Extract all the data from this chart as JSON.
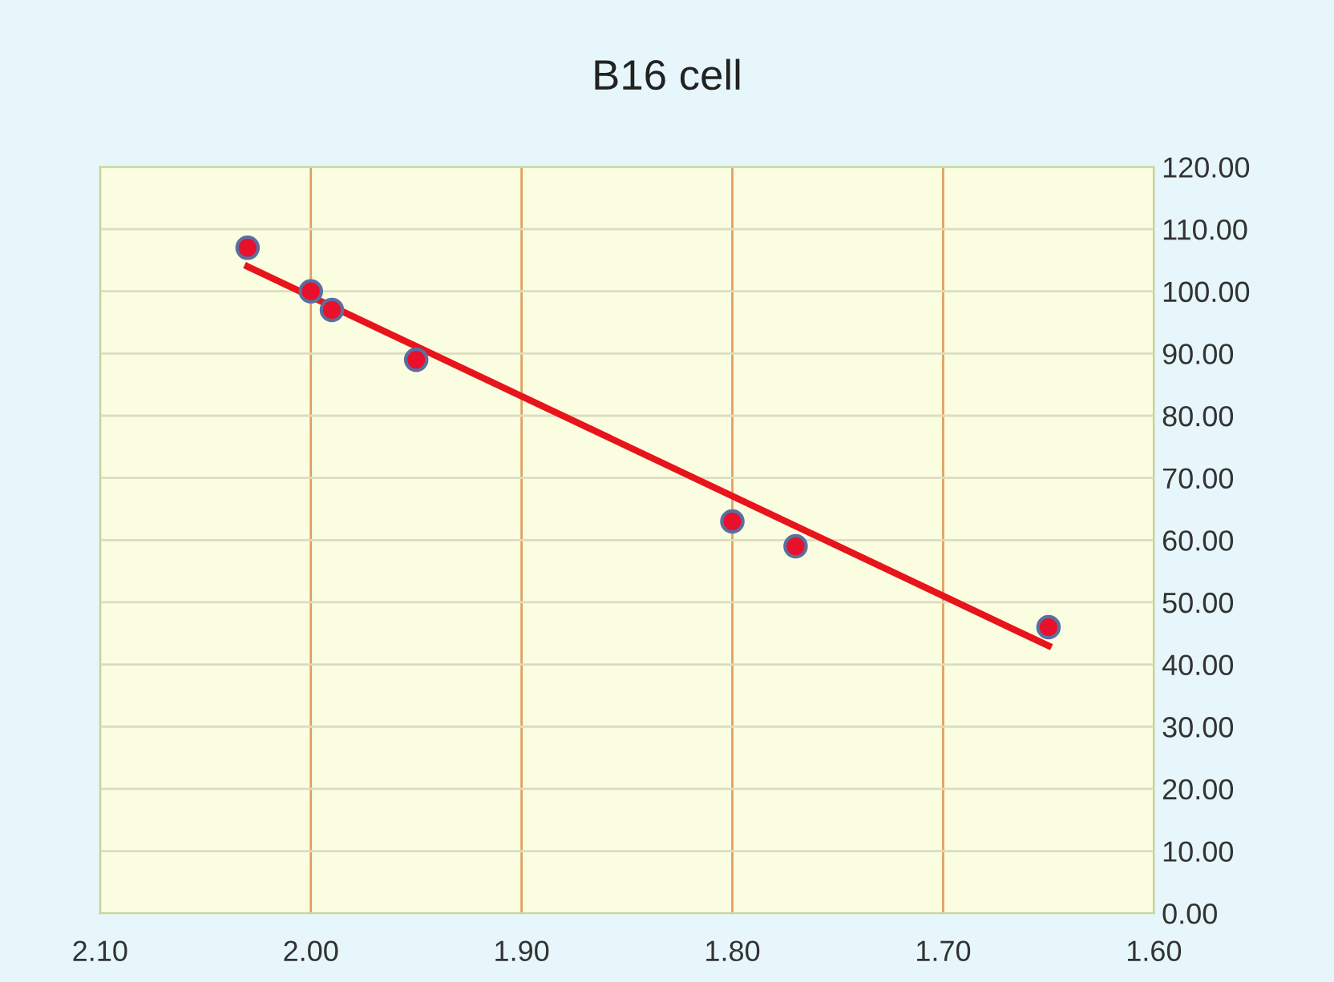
{
  "chart_data": {
    "type": "scatter",
    "title": "B16 cell",
    "series": [
      {
        "marker": "circle",
        "color": "#e8102a",
        "x": [
          2.03,
          2.0,
          1.99,
          1.95,
          1.8,
          1.77,
          1.65
        ],
        "values": [
          107,
          100,
          97,
          89,
          63,
          59,
          46
        ]
      },
      {
        "type": "line",
        "color": "#e8141c",
        "x": [
          2.03,
          1.65
        ],
        "values": [
          104,
          43
        ]
      }
    ],
    "xlim": [
      2.1,
      1.6
    ],
    "xticks": [
      {
        "value": 2.1,
        "label": "2.10"
      },
      {
        "value": 2.0,
        "label": "2.00"
      },
      {
        "value": 1.9,
        "label": "1.90"
      },
      {
        "value": 1.8,
        "label": "1.80"
      },
      {
        "value": 1.7,
        "label": "1.70"
      },
      {
        "value": 1.6,
        "label": "1.60"
      }
    ],
    "ylim": [
      0,
      120
    ],
    "yticks": [
      {
        "value": 0,
        "label": "0.00"
      },
      {
        "value": 10,
        "label": "10.00"
      },
      {
        "value": 20,
        "label": "20.00"
      },
      {
        "value": 30,
        "label": "30.00"
      },
      {
        "value": 40,
        "label": "40.00"
      },
      {
        "value": 50,
        "label": "50.00"
      },
      {
        "value": 60,
        "label": "60.00"
      },
      {
        "value": 70,
        "label": "70.00"
      },
      {
        "value": 80,
        "label": "80.00"
      },
      {
        "value": 90,
        "label": "90.00"
      },
      {
        "value": 100,
        "label": "100.00"
      },
      {
        "value": 110,
        "label": "110.00"
      },
      {
        "value": 120,
        "label": "120.00"
      }
    ],
    "grid": true,
    "legend": false
  }
}
